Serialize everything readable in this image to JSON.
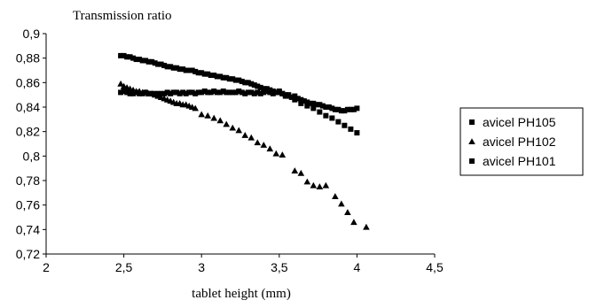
{
  "chart_data": {
    "type": "scatter",
    "title": "",
    "ylabel": "Transmission ratio",
    "xlabel": "tablet height (mm)",
    "xlim": [
      2,
      4.5
    ],
    "ylim": [
      0.72,
      0.9
    ],
    "x_ticks": [
      "2",
      "2,5",
      "3",
      "3,5",
      "4",
      "4,5"
    ],
    "y_ticks": [
      "0,72",
      "0,74",
      "0,76",
      "0,78",
      "0,8",
      "0,82",
      "0,84",
      "0,86",
      "0,88",
      "0,9"
    ],
    "grid": false,
    "legend_position": "right",
    "series": [
      {
        "name": "avicel PH105",
        "marker": "square",
        "color": "#000000",
        "x": [
          2.48,
          2.5,
          2.52,
          2.54,
          2.56,
          2.58,
          2.6,
          2.62,
          2.64,
          2.66,
          2.68,
          2.7,
          2.72,
          2.74,
          2.76,
          2.78,
          2.8,
          2.82,
          2.84,
          2.86,
          2.88,
          2.9,
          2.92,
          2.94,
          2.96,
          2.98,
          3.0,
          3.02,
          3.04,
          3.06,
          3.08,
          3.1,
          3.12,
          3.14,
          3.16,
          3.18,
          3.2,
          3.22,
          3.24,
          3.26,
          3.28,
          3.3,
          3.32,
          3.34,
          3.36,
          3.38,
          3.4,
          3.42,
          3.44,
          3.46,
          3.48,
          3.5,
          3.52,
          3.54,
          3.56,
          3.58,
          3.6,
          3.62,
          3.64,
          3.66,
          3.68,
          3.7,
          3.72,
          3.74,
          3.76,
          3.78,
          3.8,
          3.82,
          3.84,
          3.86,
          3.88,
          3.9,
          3.92,
          3.94,
          3.96,
          3.98,
          4.0
        ],
        "y": [
          0.852,
          0.853,
          0.852,
          0.851,
          0.851,
          0.852,
          0.851,
          0.851,
          0.852,
          0.851,
          0.851,
          0.851,
          0.851,
          0.851,
          0.851,
          0.852,
          0.851,
          0.852,
          0.852,
          0.851,
          0.852,
          0.851,
          0.852,
          0.852,
          0.851,
          0.852,
          0.852,
          0.853,
          0.852,
          0.852,
          0.853,
          0.852,
          0.852,
          0.853,
          0.852,
          0.852,
          0.852,
          0.852,
          0.853,
          0.852,
          0.851,
          0.852,
          0.852,
          0.851,
          0.852,
          0.851,
          0.852,
          0.853,
          0.852,
          0.851,
          0.852,
          0.853,
          0.851,
          0.849,
          0.85,
          0.848,
          0.849,
          0.847,
          0.846,
          0.845,
          0.844,
          0.843,
          0.843,
          0.842,
          0.842,
          0.841,
          0.84,
          0.84,
          0.839,
          0.838,
          0.838,
          0.837,
          0.837,
          0.838,
          0.838,
          0.838,
          0.839
        ]
      },
      {
        "name": "avicel PH102",
        "marker": "triangle",
        "color": "#000000",
        "x": [
          2.48,
          2.5,
          2.52,
          2.54,
          2.56,
          2.58,
          2.6,
          2.62,
          2.64,
          2.66,
          2.68,
          2.7,
          2.72,
          2.74,
          2.76,
          2.78,
          2.8,
          2.82,
          2.84,
          2.86,
          2.88,
          2.9,
          2.92,
          2.94,
          2.96,
          3.0,
          3.04,
          3.08,
          3.12,
          3.16,
          3.2,
          3.24,
          3.28,
          3.32,
          3.36,
          3.4,
          3.44,
          3.48,
          3.52,
          3.6,
          3.64,
          3.68,
          3.72,
          3.76,
          3.8,
          3.86,
          3.9,
          3.94,
          3.98,
          4.06
        ],
        "y": [
          0.859,
          0.857,
          0.856,
          0.855,
          0.854,
          0.853,
          0.853,
          0.852,
          0.852,
          0.851,
          0.851,
          0.85,
          0.849,
          0.848,
          0.847,
          0.846,
          0.845,
          0.844,
          0.843,
          0.843,
          0.842,
          0.842,
          0.841,
          0.84,
          0.839,
          0.834,
          0.833,
          0.831,
          0.829,
          0.826,
          0.823,
          0.821,
          0.817,
          0.815,
          0.811,
          0.809,
          0.806,
          0.802,
          0.801,
          0.788,
          0.786,
          0.779,
          0.776,
          0.775,
          0.776,
          0.767,
          0.761,
          0.754,
          0.746,
          0.742
        ]
      },
      {
        "name": "avicel PH101",
        "marker": "square",
        "color": "#000000",
        "x": [
          2.48,
          2.5,
          2.52,
          2.54,
          2.56,
          2.58,
          2.6,
          2.62,
          2.64,
          2.66,
          2.68,
          2.7,
          2.72,
          2.74,
          2.76,
          2.78,
          2.8,
          2.82,
          2.84,
          2.86,
          2.88,
          2.9,
          2.92,
          2.94,
          2.96,
          2.98,
          3.0,
          3.02,
          3.04,
          3.06,
          3.08,
          3.1,
          3.12,
          3.14,
          3.16,
          3.18,
          3.2,
          3.22,
          3.24,
          3.26,
          3.28,
          3.3,
          3.32,
          3.34,
          3.36,
          3.38,
          3.4,
          3.42,
          3.44,
          3.46,
          3.48,
          3.5,
          3.52,
          3.54,
          3.56,
          3.6,
          3.64,
          3.68,
          3.72,
          3.76,
          3.8,
          3.84,
          3.88,
          3.92,
          3.96,
          4.0
        ],
        "y": [
          0.882,
          0.882,
          0.881,
          0.881,
          0.88,
          0.879,
          0.879,
          0.878,
          0.878,
          0.877,
          0.877,
          0.876,
          0.875,
          0.875,
          0.874,
          0.873,
          0.873,
          0.872,
          0.872,
          0.871,
          0.871,
          0.87,
          0.87,
          0.87,
          0.869,
          0.868,
          0.868,
          0.867,
          0.867,
          0.866,
          0.866,
          0.865,
          0.865,
          0.864,
          0.864,
          0.863,
          0.863,
          0.862,
          0.862,
          0.861,
          0.86,
          0.86,
          0.859,
          0.858,
          0.857,
          0.856,
          0.855,
          0.855,
          0.854,
          0.853,
          0.852,
          0.852,
          0.851,
          0.85,
          0.849,
          0.846,
          0.843,
          0.841,
          0.839,
          0.836,
          0.833,
          0.831,
          0.828,
          0.825,
          0.822,
          0.819
        ]
      }
    ]
  }
}
